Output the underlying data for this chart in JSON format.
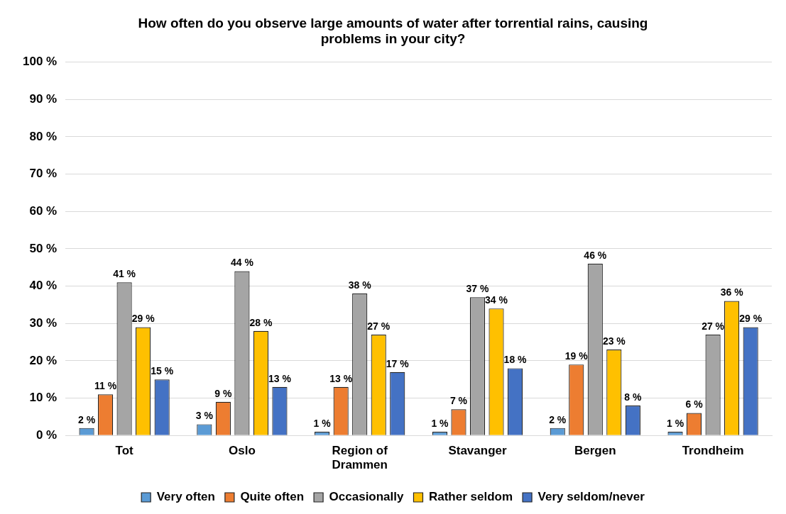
{
  "chart_data": {
    "type": "bar",
    "title": "How often do you observe large amounts of water after torrential rains, causing problems in your city?",
    "categories": [
      "Tot",
      "Oslo",
      "Region of Drammen",
      "Stavanger",
      "Bergen",
      "Trondheim"
    ],
    "series": [
      {
        "name": "Very often",
        "color": "#5b9bd5",
        "values": [
          2,
          3,
          1,
          1,
          2,
          1
        ],
        "value_labels": [
          "2 %",
          "3 %",
          "1 %",
          "1 %",
          "2 %",
          "1 %"
        ]
      },
      {
        "name": "Quite often",
        "color": "#ed7d31",
        "values": [
          11,
          9,
          13,
          7,
          19,
          6
        ],
        "value_labels": [
          "11 %",
          "9 %",
          "13 %",
          "7 %",
          "19 %",
          "6 %"
        ]
      },
      {
        "name": "Occasionally",
        "color": "#a5a5a5",
        "values": [
          41,
          44,
          38,
          37,
          46,
          27
        ],
        "value_labels": [
          "41 %",
          "44 %",
          "38 %",
          "37 %",
          "46 %",
          "27 %"
        ]
      },
      {
        "name": "Rather seldom",
        "color": "#ffc000",
        "values": [
          29,
          28,
          27,
          34,
          23,
          36
        ],
        "value_labels": [
          "29 %",
          "28 %",
          "27 %",
          "34 %",
          "23 %",
          "36 %"
        ]
      },
      {
        "name": "Very seldom/never",
        "color": "#4472c4",
        "values": [
          15,
          13,
          17,
          18,
          8,
          29
        ],
        "value_labels": [
          "15 %",
          "13 %",
          "17 %",
          "18 %",
          "8 %",
          "29 %"
        ]
      }
    ],
    "ylim": [
      0,
      100
    ],
    "yticks": [
      {
        "value": 0,
        "label": "0 %"
      },
      {
        "value": 10,
        "label": "10 %"
      },
      {
        "value": 20,
        "label": "20 %"
      },
      {
        "value": 30,
        "label": "30 %"
      },
      {
        "value": 40,
        "label": "40 %"
      },
      {
        "value": 50,
        "label": "50 %"
      },
      {
        "value": 60,
        "label": "60 %"
      },
      {
        "value": 70,
        "label": "70 %"
      },
      {
        "value": 80,
        "label": "80 %"
      },
      {
        "value": 90,
        "label": "90 %"
      },
      {
        "value": 100,
        "label": "100 %"
      }
    ],
    "grid": "y",
    "legend": "bottom"
  }
}
